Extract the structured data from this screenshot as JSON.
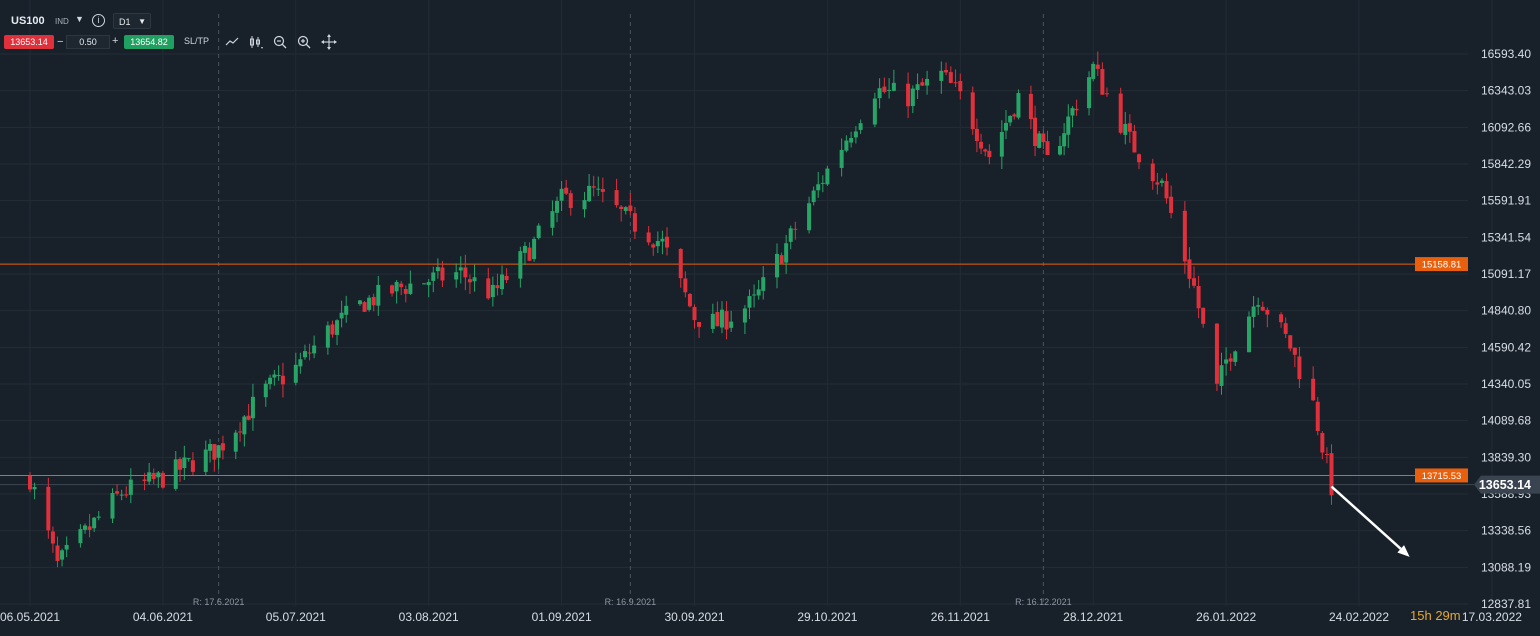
{
  "toolbar": {
    "symbol": "US100",
    "class_label": "IND",
    "timeframe": "D1",
    "sell_price": "13653.14",
    "lot": "0.50",
    "buy_price": "13654.82",
    "sltp_label": "SL/TP",
    "icons": [
      "line-chart-icon",
      "candles-icon",
      "zoom-out-icon",
      "zoom-in-icon",
      "crosshair-icon"
    ]
  },
  "countdown": {
    "hours": "15h",
    "minutes": "29m"
  },
  "colors": {
    "bg": "#18202a",
    "up": "#27a567",
    "down": "#e0303b",
    "level": "#e8600e",
    "current": "#3d4752",
    "arrow": "#ffffff"
  },
  "chart_data": {
    "type": "candlestick",
    "symbol": "US100",
    "timeframe": "D1",
    "y_range": [
      12837.81,
      16843.3
    ],
    "y_ticks": [
      "16593.40",
      "16343.03",
      "16092.66",
      "15842.29",
      "15591.91",
      "15341.54",
      "15091.17",
      "14840.80",
      "14590.42",
      "14340.05",
      "14089.68",
      "13839.30",
      "13588.93",
      "13338.56",
      "13088.19",
      "12837.81"
    ],
    "x_ticks": [
      "06.05.2021",
      "04.06.2021",
      "05.07.2021",
      "03.08.2021",
      "01.09.2021",
      "30.09.2021",
      "29.10.2021",
      "26.11.2021",
      "28.12.2021",
      "26.01.2022",
      "24.02.2022",
      "17.03.2022"
    ],
    "levels": [
      {
        "label": "15158.81",
        "value": 15158.81
      },
      {
        "label": "13715.53",
        "value": 13715.53
      }
    ],
    "current_price": {
      "label": "13653.14",
      "value": 13653.14
    },
    "rollover_markers": [
      "R: 17.6.2021",
      "R: 16.9.2021",
      "R: 16.12.2021"
    ],
    "annotations": [
      {
        "type": "arrow",
        "from": {
          "date": "2022-02-18",
          "price": 13640
        },
        "to": {
          "date": "2022-03-04",
          "price": 13160
        }
      }
    ],
    "close_path": [
      [
        "06.05.2021",
        13700
      ],
      [
        "12.05.2021",
        13100
      ],
      [
        "18.05.2021",
        13320
      ],
      [
        "26.05.2021",
        13600
      ],
      [
        "04.06.2021",
        13700
      ],
      [
        "17.06.2021",
        13900
      ],
      [
        "28.06.2021",
        14300
      ],
      [
        "05.07.2021",
        14450
      ],
      [
        "12.07.2021",
        14700
      ],
      [
        "20.07.2021",
        14900
      ],
      [
        "28.07.2021",
        15000
      ],
      [
        "03.08.2021",
        15050
      ],
      [
        "10.08.2021",
        15100
      ],
      [
        "17.08.2021",
        14950
      ],
      [
        "26.08.2021",
        15300
      ],
      [
        "01.09.2021",
        15600
      ],
      [
        "08.09.2021",
        15650
      ],
      [
        "16.09.2021",
        15450
      ],
      [
        "23.09.2021",
        15300
      ],
      [
        "30.09.2021",
        14800
      ],
      [
        "05.10.2021",
        14750
      ],
      [
        "13.10.2021",
        14900
      ],
      [
        "22.10.2021",
        15400
      ],
      [
        "29.10.2021",
        15800
      ],
      [
        "08.11.2021",
        16350
      ],
      [
        "15.11.2021",
        16300
      ],
      [
        "22.11.2021",
        16450
      ],
      [
        "26.11.2021",
        16300
      ],
      [
        "03.12.2021",
        15900
      ],
      [
        "10.12.2021",
        16300
      ],
      [
        "17.12.2021",
        15850
      ],
      [
        "28.12.2021",
        16500
      ],
      [
        "05.01.2022",
        16000
      ],
      [
        "12.01.2022",
        15700
      ],
      [
        "19.01.2022",
        15000
      ],
      [
        "24.01.2022",
        14300
      ],
      [
        "26.01.2022",
        14500
      ],
      [
        "02.02.2022",
        14950
      ],
      [
        "09.02.2022",
        14600
      ],
      [
        "14.02.2022",
        14200
      ],
      [
        "18.02.2022",
        13640
      ]
    ]
  }
}
